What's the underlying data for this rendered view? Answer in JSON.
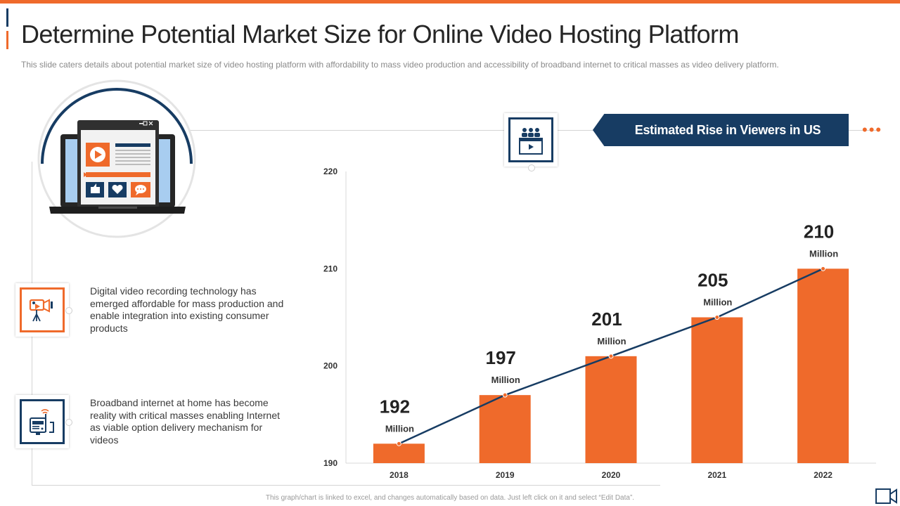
{
  "slide": {
    "title": "Determine Potential Market Size for Online Video Hosting Platform",
    "subtitle": "This slide caters details about potential market size of video hosting platform with affordability to mass video production and accessibility of broadband internet to critical masses as video delivery platform.",
    "banner": "Estimated Rise in Viewers in US",
    "footer": "This graph/chart is linked to excel, and changes automatically based on data. Just left click on it and select “Edit Data”."
  },
  "points": [
    {
      "icon": "video-camera-icon",
      "text": "Digital video recording technology has emerged affordable for mass production and enable integration into existing consumer products"
    },
    {
      "icon": "broadband-router-icon",
      "text": "Broadband internet at home has become reality with critical masses enabling Internet as viable option delivery mechanism for videos"
    }
  ],
  "colors": {
    "accent": "#ef6a2b",
    "navy": "#173c63",
    "bar": "#ef6a2b",
    "line": "#173c63"
  },
  "chart_data": {
    "type": "bar",
    "categories": [
      "2018",
      "2019",
      "2020",
      "2021",
      "2022"
    ],
    "values": [
      192,
      197,
      201,
      205,
      210
    ],
    "value_labels": [
      "192",
      "197",
      "201",
      "205",
      "210"
    ],
    "unit_label": "Million",
    "yticks": [
      "190",
      "200",
      "210",
      "220"
    ],
    "ylim": [
      190,
      220
    ],
    "overlay_line": true,
    "title": "",
    "xlabel": "",
    "ylabel": "",
    "grid": false
  }
}
